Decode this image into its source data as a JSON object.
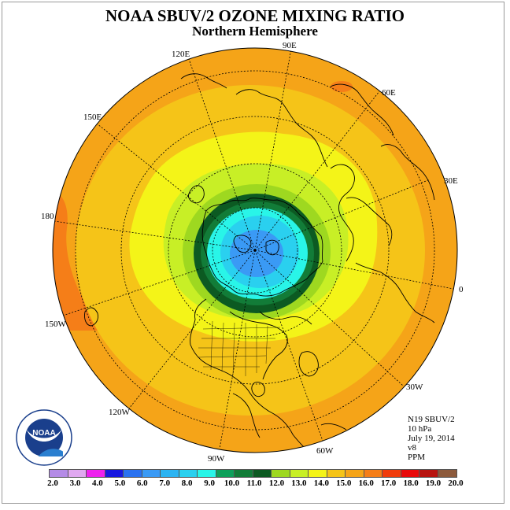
{
  "title": "NOAA SBUV/2 OZONE MIXING RATIO",
  "subtitle": "Northern Hemisphere",
  "longitude_labels": {
    "lon_0": "0",
    "lon_30e": "30E",
    "lon_60e": "60E",
    "lon_90e": "90E",
    "lon_120e": "120E",
    "lon_150e": "150E",
    "lon_180": "180",
    "lon_150w": "150W",
    "lon_120w": "120W",
    "lon_90w": "90W",
    "lon_60w": "60W",
    "lon_30w": "30W"
  },
  "info": {
    "instrument": "N19 SBUV/2",
    "pressure": "10 hPa",
    "date": "July 19, 2014",
    "version": "v8",
    "units": "PPM"
  },
  "logo": {
    "text": "NOAA"
  },
  "colorbar": {
    "labels": [
      "2.0",
      "3.0",
      "4.0",
      "5.0",
      "6.0",
      "7.0",
      "8.0",
      "9.0",
      "10.0",
      "11.0",
      "12.0",
      "13.0",
      "14.0",
      "15.0",
      "16.0",
      "17.0",
      "18.0",
      "19.0",
      "20.0"
    ],
    "colors": [
      "#b48be6",
      "#e0a8f0",
      "#ee22ee",
      "#1818e0",
      "#2a72f0",
      "#3a9af5",
      "#2cb4f2",
      "#2ad0ef",
      "#29f5e8",
      "#0ea05a",
      "#127c38",
      "#0c5a22",
      "#9ed820",
      "#c8ef26",
      "#f4f418",
      "#f5c418",
      "#f5a418",
      "#f57e18",
      "#f03c0c",
      "#e80a0a",
      "#b81410",
      "#8c5a3c"
    ]
  }
}
